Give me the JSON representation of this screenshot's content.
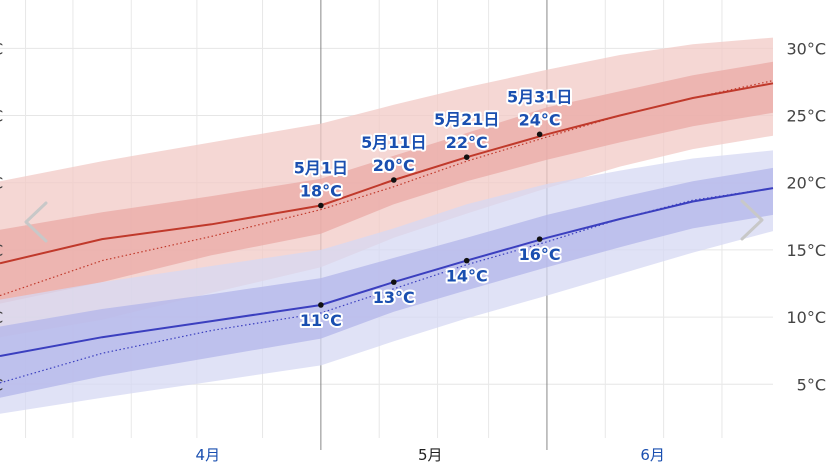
{
  "chart_data": {
    "type": "area",
    "x_unit": "day_of_year",
    "x_range": [
      77,
      183
    ],
    "ylim": [
      1,
      33
    ],
    "y_ticks": [
      {
        "value": 5,
        "label": "5°C"
      },
      {
        "value": 10,
        "label": "10°C"
      },
      {
        "value": 15,
        "label": "15°C"
      },
      {
        "value": 20,
        "label": "20°C"
      },
      {
        "value": 25,
        "label": "25°C"
      },
      {
        "value": 30,
        "label": "30°C"
      }
    ],
    "months": [
      {
        "label": "4月",
        "x": 105.5,
        "color": "#1a4fb0"
      },
      {
        "label": "5月",
        "x": 136,
        "color": "#222222"
      },
      {
        "label": "6月",
        "x": 166.5,
        "color": "#1a4fb0"
      }
    ],
    "month_boundaries": [
      121,
      152
    ],
    "x_minor_grid": [
      80.5,
      87,
      95,
      104,
      113,
      129,
      137,
      144,
      160,
      168,
      176
    ],
    "series": [
      {
        "name": "high",
        "color": "#c0392b",
        "band_outer_color": "#f2c9c6",
        "band_inner_color": "#e9aaa6",
        "x": [
          77,
          91,
          106,
          121,
          131,
          141,
          152,
          162,
          172,
          183
        ],
        "values": [
          14.0,
          15.8,
          16.9,
          18.3,
          20.2,
          21.9,
          23.6,
          25.0,
          26.3,
          27.4
        ],
        "inner_low": [
          11.0,
          12.6,
          14.6,
          16.2,
          18.4,
          20.1,
          21.7,
          23.0,
          24.2,
          25.2
        ],
        "inner_high": [
          16.5,
          17.8,
          19.0,
          20.3,
          22.0,
          23.7,
          25.6,
          26.8,
          28.0,
          29.0
        ],
        "outer_low": [
          8.5,
          9.8,
          11.8,
          13.7,
          15.9,
          17.7,
          19.6,
          21.2,
          22.5,
          23.5
        ],
        "outer_high": [
          20.1,
          21.6,
          23.0,
          24.4,
          25.8,
          27.1,
          28.4,
          29.5,
          30.3,
          30.8
        ],
        "dotted": [
          11.6,
          14.2,
          16.0,
          18.0,
          19.7,
          21.6,
          23.4,
          25.0,
          26.3,
          27.6
        ]
      },
      {
        "name": "low",
        "color": "#3b3fbf",
        "band_outer_color": "#d6d8f3",
        "band_inner_color": "#b3b6ea",
        "x": [
          77,
          91,
          106,
          121,
          131,
          141,
          152,
          162,
          172,
          183
        ],
        "values": [
          7.1,
          8.5,
          9.7,
          10.9,
          12.6,
          14.2,
          15.9,
          17.3,
          18.6,
          19.6
        ],
        "inner_low": [
          4.0,
          5.6,
          7.0,
          8.4,
          10.4,
          12.0,
          13.7,
          15.2,
          16.6,
          17.6
        ],
        "inner_high": [
          9.3,
          10.6,
          11.7,
          12.9,
          14.4,
          15.9,
          17.6,
          18.9,
          20.1,
          21.1
        ],
        "outer_low": [
          2.8,
          4.0,
          5.2,
          6.4,
          8.2,
          9.9,
          11.6,
          13.2,
          14.8,
          16.4
        ],
        "outer_high": [
          11.3,
          12.6,
          13.8,
          15.0,
          16.6,
          18.4,
          19.9,
          20.9,
          21.8,
          22.4
        ],
        "dotted": [
          5.1,
          7.3,
          9.0,
          10.3,
          12.1,
          13.9,
          15.6,
          17.3,
          18.7,
          19.6
        ]
      }
    ],
    "annotations": [
      {
        "series": "high",
        "x": 121,
        "y": 18.3,
        "date": "5月1日",
        "value_label": "18°C",
        "color": "#1a4fb0"
      },
      {
        "series": "high",
        "x": 131,
        "y": 20.2,
        "date": "5月11日",
        "value_label": "20°C",
        "color": "#1a4fb0"
      },
      {
        "series": "high",
        "x": 141,
        "y": 21.9,
        "date": "5月21日",
        "value_label": "22°C",
        "color": "#1a4fb0"
      },
      {
        "series": "high",
        "x": 151,
        "y": 23.6,
        "date": "5月31日",
        "value_label": "24°C",
        "color": "#1a4fb0"
      },
      {
        "series": "low",
        "x": 121,
        "y": 10.9,
        "date": "",
        "value_label": "11°C",
        "color": "#1a4fb0"
      },
      {
        "series": "low",
        "x": 131,
        "y": 12.6,
        "date": "",
        "value_label": "13°C",
        "color": "#1a4fb0"
      },
      {
        "series": "low",
        "x": 141,
        "y": 14.2,
        "date": "",
        "value_label": "14°C",
        "color": "#1a4fb0"
      },
      {
        "series": "low",
        "x": 151,
        "y": 15.8,
        "date": "",
        "value_label": "16°C",
        "color": "#1a4fb0"
      }
    ]
  },
  "nav": {
    "prev_icon": "chevron-left-icon",
    "next_icon": "chevron-right-icon",
    "arrow_color": "#c8c8c8"
  }
}
